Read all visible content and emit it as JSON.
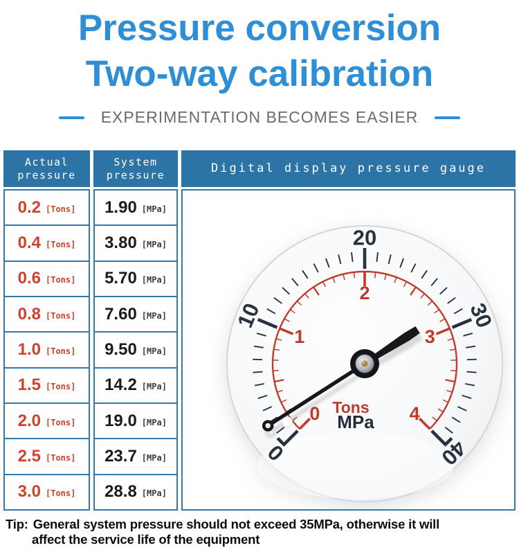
{
  "header": {
    "title_line1": "Pressure conversion",
    "title_line2": "Two-way calibration",
    "title_color": "#2e8fd6",
    "subtitle": "EXPERIMENTATION BECOMES EASIER",
    "subtitle_color": "#6a6b6d",
    "dash_color": "#2e8fd6"
  },
  "table": {
    "header_bg": "#2d74a6",
    "border_color": "#2f7aab",
    "actual_color": "#d2402e",
    "system_color": "#1b1b1b",
    "col1_header": {
      "line1": "Actual",
      "line2": "pressure"
    },
    "col2_header": {
      "line1": "System",
      "line2": "pressure"
    },
    "col3_header": "Digital display pressure gauge",
    "rows": [
      {
        "actual": "0.2",
        "actual_unit": "[Tons]",
        "system": "1.90",
        "system_unit": "[MPa]"
      },
      {
        "actual": "0.4",
        "actual_unit": "[Tons]",
        "system": "3.80",
        "system_unit": "[MPa]"
      },
      {
        "actual": "0.6",
        "actual_unit": "[Tons]",
        "system": "5.70",
        "system_unit": "[MPa]"
      },
      {
        "actual": "0.8",
        "actual_unit": "[Tons]",
        "system": "7.60",
        "system_unit": "[MPa]"
      },
      {
        "actual": "1.0",
        "actual_unit": "[Tons]",
        "system": "9.50",
        "system_unit": "[MPa]"
      },
      {
        "actual": "1.5",
        "actual_unit": "[Tons]",
        "system": "14.2",
        "system_unit": "[MPa]"
      },
      {
        "actual": "2.0",
        "actual_unit": "[Tons]",
        "system": "19.0",
        "system_unit": "[MPa]"
      },
      {
        "actual": "2.5",
        "actual_unit": "[Tons]",
        "system": "23.7",
        "system_unit": "[MPa]"
      },
      {
        "actual": "3.0",
        "actual_unit": "[Tons]",
        "system": "28.8",
        "system_unit": "[MPa]"
      }
    ]
  },
  "gauge": {
    "type": "gauge",
    "needle_value": 2.85,
    "needle_unit": "Tons",
    "needle_color": "#17181a",
    "outer_scale": {
      "unit": "MPa",
      "min": 0,
      "max": 40,
      "minor_step": 1,
      "major_step": 10,
      "labels": [
        "0",
        "10",
        "20",
        "30",
        "40"
      ],
      "color": "#27323e"
    },
    "inner_scale": {
      "unit": "Tons",
      "min": 0,
      "max": 4,
      "minor_step": 0.1,
      "major_step": 1,
      "labels": [
        "0",
        "1",
        "2",
        "3",
        "4"
      ],
      "color": "#c23a2c"
    },
    "center_label_top": "Tons",
    "center_label_top_color": "#c23a2c",
    "center_label_bottom": "MPa",
    "center_label_bottom_color": "#222d3a"
  },
  "tip": {
    "prefix": "Tip:",
    "line1": "General system pressure should not exceed 35MPa, otherwise it will",
    "line2": "affect the service life of the equipment"
  }
}
